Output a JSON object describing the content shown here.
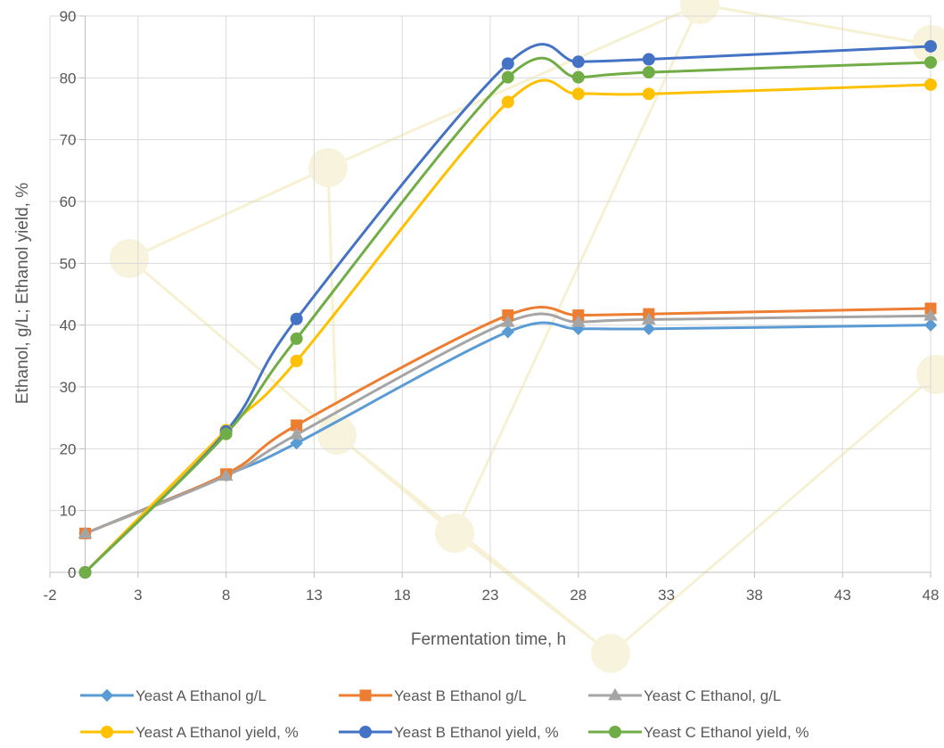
{
  "chart_data": {
    "type": "line",
    "title": "",
    "xlabel": "Fermentation time, h",
    "ylabel": "Ethanol, g/L; Ethanol yield, %",
    "xlim": [
      -2,
      48
    ],
    "ylim": [
      0,
      90
    ],
    "x_ticks": [
      "-2",
      "3",
      "8",
      "13",
      "18",
      "23",
      "28",
      "33",
      "38",
      "43",
      "48"
    ],
    "y_ticks": [
      "0",
      "10",
      "20",
      "30",
      "40",
      "50",
      "60",
      "70",
      "80",
      "90"
    ],
    "x_tick_values": [
      -2,
      3,
      8,
      13,
      18,
      23,
      28,
      33,
      38,
      43,
      48
    ],
    "y_tick_values": [
      0,
      10,
      20,
      30,
      40,
      50,
      60,
      70,
      80,
      90
    ],
    "grid": true,
    "smoothed": true,
    "legend_position": "bottom",
    "x": [
      0,
      8,
      12,
      24,
      28,
      32,
      48
    ],
    "series": [
      {
        "name": "Yeast A Ethanol g/L",
        "color": "#5b9bd5",
        "marker": "diamond",
        "values": [
          6.3,
          15.7,
          20.9,
          38.9,
          39.4,
          39.4,
          40.0
        ]
      },
      {
        "name": "Yeast B Ethanol g/L",
        "color": "#ed7d31",
        "marker": "square",
        "values": [
          6.3,
          15.9,
          23.8,
          41.6,
          41.6,
          41.8,
          42.7
        ]
      },
      {
        "name": "Yeast C Ethanol, g/L",
        "color": "#a5a5a5",
        "marker": "triangle",
        "values": [
          6.3,
          15.6,
          22.3,
          40.5,
          40.5,
          40.9,
          41.5
        ]
      },
      {
        "name": "Yeast A Ethanol yield, %",
        "color": "#ffc000",
        "marker": "circle",
        "values": [
          0,
          23.0,
          34.2,
          76.1,
          77.4,
          77.4,
          78.9
        ]
      },
      {
        "name": "Yeast B Ethanol yield, %",
        "color": "#4472c4",
        "marker": "circle",
        "values": [
          0,
          22.8,
          41.0,
          82.3,
          82.6,
          83.0,
          85.1
        ]
      },
      {
        "name": "Yeast C Ethanol yield, %",
        "color": "#70ad47",
        "marker": "circle",
        "values": [
          0,
          22.4,
          37.8,
          80.1,
          80.1,
          80.9,
          82.5
        ]
      }
    ]
  }
}
